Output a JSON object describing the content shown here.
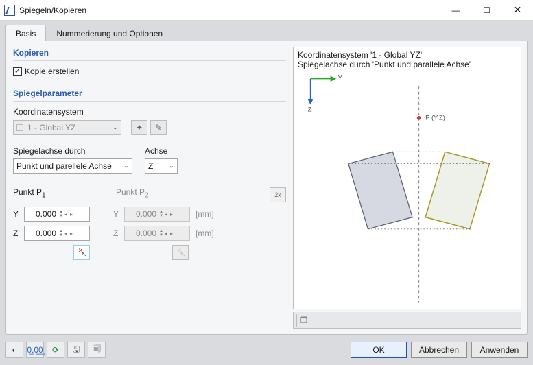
{
  "window": {
    "title": "Spiegeln/Kopieren",
    "minimize_glyph": "—",
    "maximize_glyph": "☐",
    "close_glyph": "✕"
  },
  "tabs": {
    "active": "Basis",
    "inactive": "Nummerierung und Optionen"
  },
  "copy": {
    "heading": "Kopieren",
    "checkbox_label": "Kopie erstellen",
    "checked": true,
    "check_glyph": "✓"
  },
  "params": {
    "heading": "Spiegelparameter",
    "cs_label": "Koordinatensystem",
    "cs_value": "1 - Global YZ",
    "dropdown_arrow": "⌄",
    "axis_through_label": "Spiegelachse durch",
    "axis_through_value": "Punkt und parellele Achse",
    "axis_label": "Achse",
    "axis_value": "Z"
  },
  "points": {
    "p1_label": "Punkt P",
    "p1_sub": "1",
    "p2_label": "Punkt P",
    "p2_sub": "2",
    "y_label": "Y",
    "z_label": "Z",
    "p1_y": "0.000",
    "p1_z": "0.000",
    "p2_y": "0.000",
    "p2_z": "0.000",
    "unit": "[mm]",
    "spin_up": "▲",
    "spin_down": "▼",
    "step_left": "◂",
    "step_right": "▸",
    "pick1_glyph": "↖",
    "pick_mark": "✕",
    "twox_glyph": "2x"
  },
  "preview": {
    "line1": "Koordinatensystem '1 - Global YZ'",
    "line2": "Spiegelachse durch 'Punkt und parallele Achse'",
    "y_axis_label": "Y",
    "z_axis_label": "Z",
    "point_label": "P (Y,Z)",
    "colors": {
      "axis_y": "#2aa82a",
      "axis_z": "#2461c9",
      "dash": "#777777",
      "shape_fill": "#d7d9e2",
      "shape_stroke": "#5a5e6f",
      "mirror_fill": "#eef0ea",
      "mirror_stroke": "#a99a25",
      "point": "#d23a3a"
    },
    "box_glyph": "❐"
  },
  "toolbar": {
    "items": [
      {
        "name": "help",
        "glyph": "◐",
        "color": "#3b3b3b"
      },
      {
        "name": "units",
        "glyph": "0̲.0̲0̲",
        "color": "#2a63c4"
      },
      {
        "name": "refresh",
        "glyph": "⟳",
        "color": "#1f8a3f"
      },
      {
        "name": "save",
        "glyph": "🖫",
        "color": "#5a5a5a"
      },
      {
        "name": "copy",
        "glyph": "🗐",
        "color": "#5a5a5a"
      }
    ]
  },
  "buttons": {
    "ok": "OK",
    "cancel": "Abbrechen",
    "apply": "Anwenden"
  }
}
